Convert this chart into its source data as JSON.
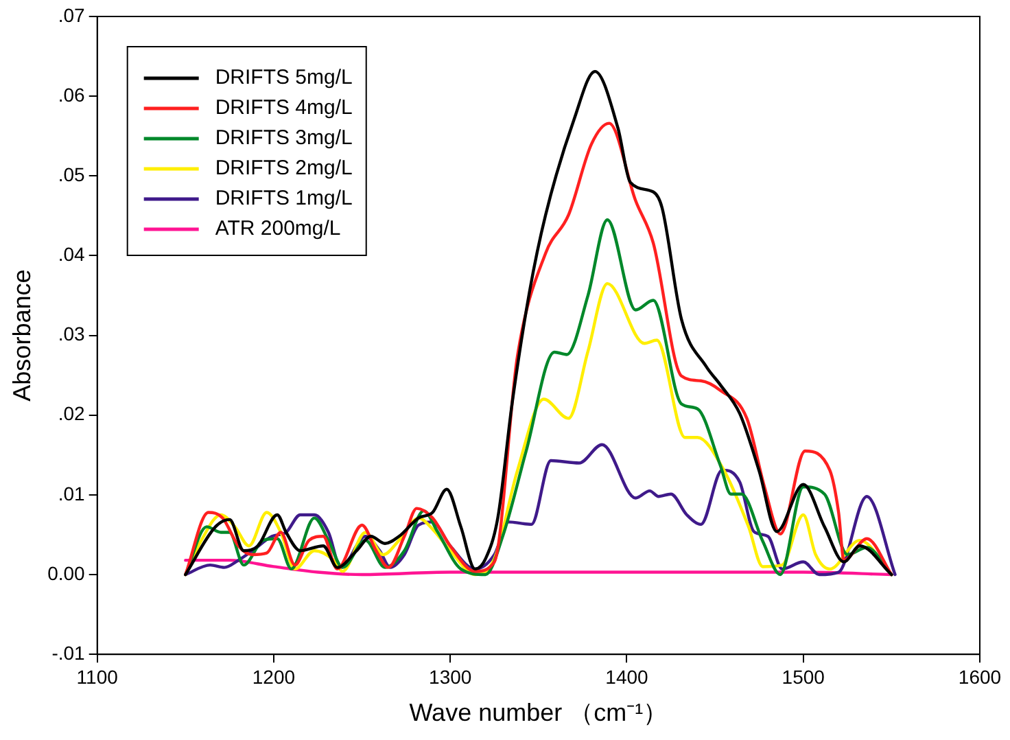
{
  "chart_data": {
    "type": "line",
    "xlabel": "Wave number （cm⁻¹）",
    "ylabel": "Absorbance",
    "xlim": [
      1100,
      1600
    ],
    "xticks": [
      1100,
      1200,
      1300,
      1400,
      1500,
      1600
    ],
    "ylim": [
      -0.01,
      0.07
    ],
    "yticks": [
      {
        "value": -0.01,
        "label": "-.01"
      },
      {
        "value": 0,
        "label": "0.00"
      },
      {
        "value": 0.01,
        "label": ".01"
      },
      {
        "value": 0.02,
        "label": ".02"
      },
      {
        "value": 0.03,
        "label": ".03"
      },
      {
        "value": 0.04,
        "label": ".04"
      },
      {
        "value": 0.05,
        "label": ".05"
      },
      {
        "value": 0.06,
        "label": ".06"
      },
      {
        "value": 0.07,
        "label": ".07"
      }
    ],
    "grid": false,
    "legend": "top left",
    "marker": "none",
    "line_style": "solid",
    "series": [
      {
        "name": "DRIFTS 5mg/L",
        "color": "#000000",
        "x": [
          1150,
          1167,
          1175,
          1183,
          1191,
          1202,
          1207,
          1215,
          1228,
          1236,
          1247,
          1255,
          1263,
          1271,
          1282,
          1290,
          1298,
          1306,
          1314,
          1320,
          1327,
          1335,
          1345,
          1354,
          1370,
          1382,
          1395,
          1402,
          1415,
          1420,
          1431,
          1445,
          1453,
          1464,
          1475,
          1485,
          1500,
          1512,
          1523,
          1532,
          1550
        ],
        "values": [
          0,
          0.006,
          0.0069,
          0.003,
          0.0036,
          0.0075,
          0.0053,
          0.003,
          0.0036,
          0.0009,
          0.003,
          0.0048,
          0.0039,
          0.0048,
          0.0071,
          0.0078,
          0.0107,
          0.006,
          0.0007,
          0.002,
          0.0072,
          0.0214,
          0.0356,
          0.0451,
          0.057,
          0.0631,
          0.056,
          0.0492,
          0.048,
          0.046,
          0.032,
          0.0261,
          0.0238,
          0.0202,
          0.013,
          0.0054,
          0.0113,
          0.006,
          0.0016,
          0.0036,
          0
        ]
      },
      {
        "name": "DRIFTS 4mg/L",
        "color": "#ff2020",
        "x": [
          1150,
          1163,
          1171,
          1180,
          1188,
          1196,
          1204,
          1212,
          1220,
          1228,
          1236,
          1250,
          1258,
          1265,
          1274,
          1281,
          1290,
          1300,
          1314,
          1325,
          1338,
          1354,
          1367,
          1380,
          1390,
          1405,
          1415,
          1431,
          1442,
          1453,
          1468,
          1478,
          1487,
          1501,
          1515,
          1520,
          1523,
          1536,
          1550
        ],
        "values": [
          0,
          0.0078,
          0.0071,
          0.0036,
          0.0025,
          0.0027,
          0.0053,
          0.0012,
          0.0043,
          0.0048,
          0.0007,
          0.0062,
          0.003,
          0.0009,
          0.0048,
          0.0083,
          0.0071,
          0.0036,
          0.0004,
          0.0016,
          0.0273,
          0.0403,
          0.0451,
          0.054,
          0.0566,
          0.0469,
          0.0416,
          0.0249,
          0.0243,
          0.0231,
          0.0196,
          0.011,
          0.0051,
          0.0155,
          0.0131,
          0.0078,
          0.0018,
          0.0045,
          0
        ]
      },
      {
        "name": "DRIFTS 3mg/L",
        "color": "#00882a",
        "x": [
          1150,
          1162,
          1170,
          1175,
          1183,
          1194,
          1202,
          1210,
          1223,
          1231,
          1239,
          1252,
          1263,
          1274,
          1285,
          1293,
          1306,
          1320,
          1330,
          1343,
          1359,
          1366,
          1378,
          1389,
          1405,
          1415,
          1431,
          1440,
          1453,
          1459,
          1465,
          1477,
          1487,
          1500,
          1512,
          1525,
          1536,
          1550
        ],
        "values": [
          0,
          0.006,
          0.0053,
          0.0053,
          0.0012,
          0.0043,
          0.0045,
          0.0007,
          0.0071,
          0.0043,
          0.0009,
          0.0043,
          0.0009,
          0.003,
          0.008,
          0.0053,
          0.0007,
          0,
          0.005,
          0.0155,
          0.0279,
          0.0276,
          0.035,
          0.0445,
          0.0332,
          0.0344,
          0.0214,
          0.0208,
          0.0137,
          0.0101,
          0.0101,
          0.0042,
          0,
          0.011,
          0.0101,
          0.0025,
          0.0034,
          0
        ]
      },
      {
        "name": "DRIFTS 2mg/L",
        "color": "#ffee00",
        "x": [
          1150,
          1159,
          1170,
          1178,
          1186,
          1196,
          1204,
          1212,
          1223,
          1234,
          1239,
          1252,
          1262,
          1271,
          1282,
          1290,
          1300,
          1314,
          1325,
          1338,
          1353,
          1367,
          1378,
          1389,
          1410,
          1417,
          1433,
          1440,
          1455,
          1469,
          1477,
          1488,
          1500,
          1507,
          1515,
          1532,
          1550
        ],
        "values": [
          0,
          0.0043,
          0.0075,
          0.006,
          0.0036,
          0.0078,
          0.0053,
          0.0007,
          0.003,
          0.0018,
          0.0004,
          0.0053,
          0.0025,
          0.0043,
          0.0071,
          0.0057,
          0.003,
          0,
          0.002,
          0.013,
          0.022,
          0.0196,
          0.028,
          0.0365,
          0.029,
          0.0294,
          0.0172,
          0.0172,
          0.0131,
          0.006,
          0.001,
          0.0012,
          0.0075,
          0.0025,
          0.0007,
          0.0043,
          0
        ]
      },
      {
        "name": "DRIFTS 1mg/L",
        "color": "#3f1a8a",
        "x": [
          1150,
          1164,
          1172,
          1180,
          1188,
          1199,
          1207,
          1215,
          1223,
          1231,
          1238,
          1252,
          1260,
          1266,
          1274,
          1282,
          1290,
          1300,
          1314,
          1325,
          1333,
          1346,
          1357,
          1373,
          1386,
          1405,
          1413,
          1418,
          1425,
          1434,
          1442,
          1454,
          1464,
          1472,
          1480,
          1488,
          1500,
          1509,
          1520,
          1536,
          1552
        ],
        "values": [
          0,
          0.0012,
          0.0009,
          0.0018,
          0.003,
          0.0048,
          0.0053,
          0.0075,
          0.0075,
          0.0053,
          0.0009,
          0.0048,
          0.003,
          0.0009,
          0.0025,
          0.0062,
          0.0066,
          0.0036,
          0.0007,
          0.0025,
          0.0066,
          0.0063,
          0.0143,
          0.014,
          0.0163,
          0.0096,
          0.0105,
          0.0098,
          0.0101,
          0.0075,
          0.0063,
          0.0131,
          0.0116,
          0.0054,
          0.0048,
          0.0007,
          0.0016,
          0,
          0.0003,
          0.0098,
          0
        ]
      },
      {
        "name": "ATR 200mg/L",
        "color": "#ff1493",
        "x": [
          1150,
          1175,
          1200,
          1225,
          1250,
          1300,
          1350,
          1400,
          1450,
          1500,
          1550
        ],
        "values": [
          0.0018,
          0.0018,
          0.001,
          0.0003,
          0,
          0.0003,
          0.0003,
          0.0003,
          0.0003,
          0.0003,
          0
        ]
      }
    ]
  }
}
